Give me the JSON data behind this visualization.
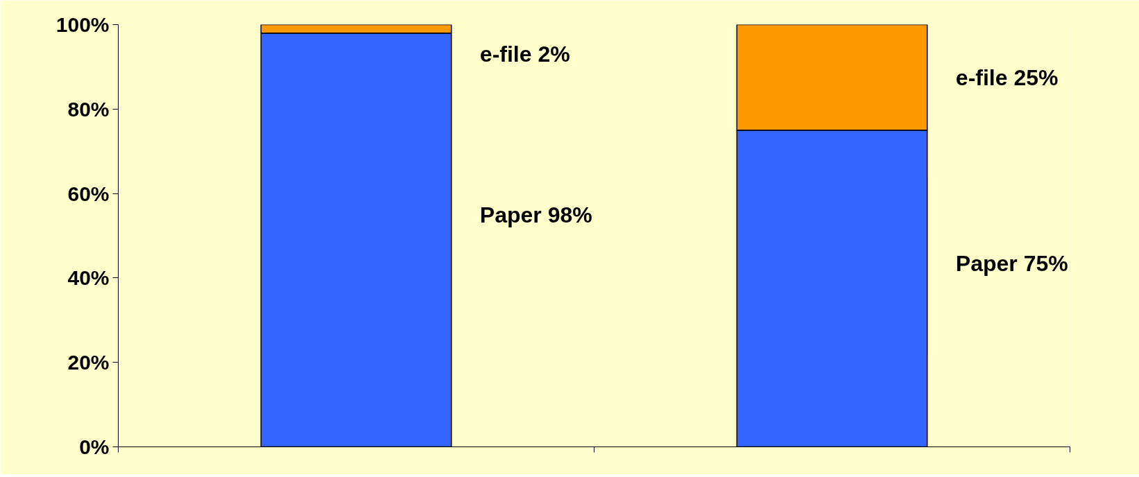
{
  "chart_data": {
    "type": "bar",
    "stacked": true,
    "categories": [
      null,
      null
    ],
    "series": [
      {
        "color": "#3366ff",
        "values": [
          98,
          75
        ]
      },
      {
        "color": "#ff9900",
        "values": [
          2,
          25
        ]
      }
    ],
    "annotations": [
      "e-file 2%",
      "Paper 98%",
      "e-file 25%",
      "Paper 75%"
    ],
    "ylim": [
      0,
      100
    ],
    "yticks": [
      {
        "value": 0,
        "label": "0%"
      },
      {
        "value": 20,
        "label": "20%"
      },
      {
        "value": 40,
        "label": "40%"
      },
      {
        "value": 60,
        "label": "60%"
      },
      {
        "value": 80,
        "label": "80%"
      },
      {
        "value": 100,
        "label": "100%"
      }
    ],
    "grid": false
  }
}
